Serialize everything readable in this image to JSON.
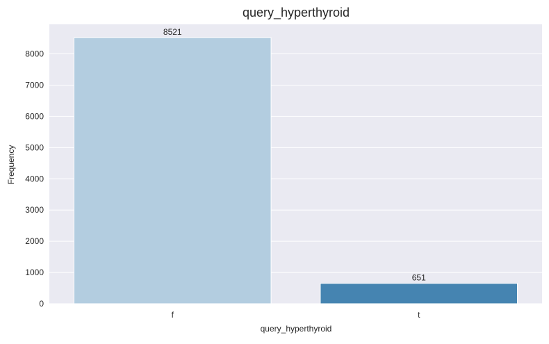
{
  "chart_data": {
    "type": "bar",
    "title": "query_hyperthyroid",
    "xlabel": "query_hyperthyroid",
    "ylabel": "Frequency",
    "categories": [
      "f",
      "t"
    ],
    "values": [
      8521,
      651
    ],
    "data_labels": [
      "8521",
      "651"
    ],
    "bar_colors": [
      "#b3cde0",
      "#4584b1"
    ],
    "ylim": [
      0,
      8947
    ],
    "yticks": [
      0,
      1000,
      2000,
      3000,
      4000,
      5000,
      6000,
      7000,
      8000
    ],
    "ytick_labels": [
      "0",
      "1000",
      "2000",
      "3000",
      "4000",
      "5000",
      "6000",
      "7000",
      "8000"
    ],
    "grid": true,
    "background_color": "#eaeaf2",
    "legend": "none"
  }
}
